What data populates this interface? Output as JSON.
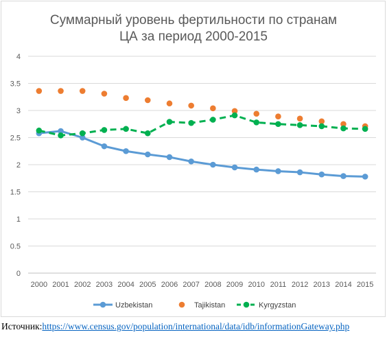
{
  "chart_data": {
    "type": "line",
    "title_lines": [
      "Суммарный уровень фертильности по странам",
      "ЦА за период 2000-2015"
    ],
    "categories": [
      "2000",
      "2001",
      "2002",
      "2003",
      "2004",
      "2005",
      "2006",
      "2007",
      "2008",
      "2009",
      "2010",
      "2011",
      "2012",
      "2013",
      "2014",
      "2015"
    ],
    "y_ticks": [
      "0",
      "0.5",
      "1",
      "1.5",
      "2",
      "2.5",
      "3",
      "3.5",
      "4"
    ],
    "ylim": [
      0,
      4
    ],
    "grid": true,
    "legend_position": "bottom",
    "series": [
      {
        "name": "Uzbekistan",
        "style": "solid-line-markers",
        "color": "#5b9bd5",
        "values": [
          2.58,
          2.62,
          2.5,
          2.34,
          2.25,
          2.19,
          2.14,
          2.06,
          2.0,
          1.95,
          1.91,
          1.88,
          1.86,
          1.82,
          1.79,
          1.78
        ]
      },
      {
        "name": "Tajikistan",
        "style": "markers-only",
        "color": "#ed7d31",
        "values": [
          3.36,
          3.36,
          3.36,
          3.31,
          3.23,
          3.19,
          3.13,
          3.09,
          3.04,
          2.99,
          2.94,
          2.89,
          2.85,
          2.8,
          2.75,
          2.71
        ]
      },
      {
        "name": "Kyrgyzstan",
        "style": "dashed-line-markers",
        "color": "#00b050",
        "values": [
          2.63,
          2.54,
          2.58,
          2.64,
          2.66,
          2.58,
          2.79,
          2.77,
          2.83,
          2.91,
          2.78,
          2.75,
          2.73,
          2.71,
          2.67,
          2.66
        ]
      }
    ]
  },
  "source": {
    "label": "Источник:",
    "url": "https://www.census.gov/population/international/data/idb/informationGateway.php"
  }
}
